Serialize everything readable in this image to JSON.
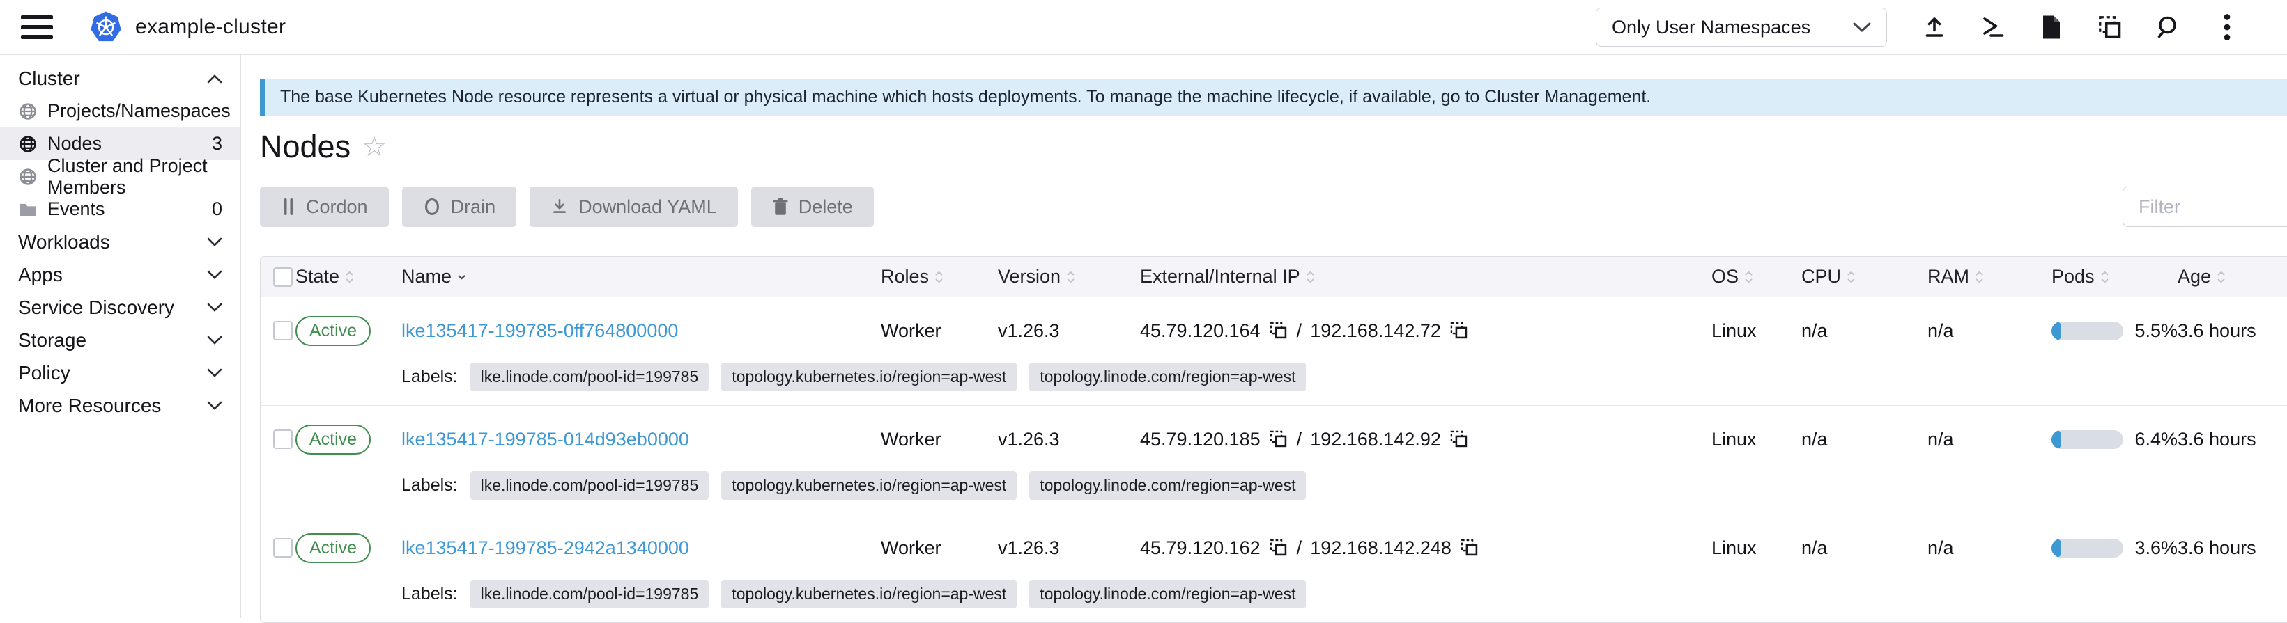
{
  "header": {
    "cluster_name": "example-cluster",
    "namespace_filter_value": "Only User Namespaces",
    "icons": [
      "hamburger-menu-icon",
      "kubernetes-logo",
      "import-yaml-icon",
      "kubectl-shell-icon",
      "docs-icon",
      "copy-config-icon",
      "search-icon",
      "kebab-menu-icon"
    ]
  },
  "sidebar": {
    "cluster_group": {
      "label": "Cluster",
      "items": [
        {
          "label": "Projects/Namespaces",
          "icon": "globe-icon",
          "count": ""
        },
        {
          "label": "Nodes",
          "icon": "globe-icon",
          "count": "3"
        },
        {
          "label": "Cluster and Project Members",
          "icon": "globe-icon",
          "count": ""
        },
        {
          "label": "Events",
          "icon": "folder-icon",
          "count": "0"
        }
      ]
    },
    "groups": [
      {
        "label": "Workloads"
      },
      {
        "label": "Apps"
      },
      {
        "label": "Service Discovery"
      },
      {
        "label": "Storage"
      },
      {
        "label": "Policy"
      },
      {
        "label": "More Resources"
      }
    ]
  },
  "banner": {
    "text": "The base Kubernetes Node resource represents a virtual or physical machine which hosts deployments. To manage the machine lifecycle, if available, go to Cluster Management."
  },
  "page": {
    "title": "Nodes"
  },
  "toolbar": {
    "cordon_label": "Cordon",
    "drain_label": "Drain",
    "download_yaml_label": "Download YAML",
    "delete_label": "Delete",
    "filter_placeholder": "Filter"
  },
  "table": {
    "columns": [
      "State",
      "Name",
      "Roles",
      "Version",
      "External/Internal IP",
      "OS",
      "CPU",
      "RAM",
      "Pods",
      "Age"
    ],
    "labels_prefix": "Labels:",
    "ip_separator": "/",
    "rows": [
      {
        "state": "Active",
        "name": "lke135417-199785-0ff764800000",
        "roles": "Worker",
        "version": "v1.26.3",
        "external_ip": "45.79.120.164",
        "internal_ip": "192.168.142.72",
        "os": "Linux",
        "cpu": "n/a",
        "ram": "n/a",
        "pods_percent": "5.5%",
        "pods_value": 5.5,
        "age": "3.6 hours",
        "labels": [
          "lke.linode.com/pool-id=199785",
          "topology.kubernetes.io/region=ap-west",
          "topology.linode.com/region=ap-west"
        ]
      },
      {
        "state": "Active",
        "name": "lke135417-199785-014d93eb0000",
        "roles": "Worker",
        "version": "v1.26.3",
        "external_ip": "45.79.120.185",
        "internal_ip": "192.168.142.92",
        "os": "Linux",
        "cpu": "n/a",
        "ram": "n/a",
        "pods_percent": "6.4%",
        "pods_value": 6.4,
        "age": "3.6 hours",
        "labels": [
          "lke.linode.com/pool-id=199785",
          "topology.kubernetes.io/region=ap-west",
          "topology.linode.com/region=ap-west"
        ]
      },
      {
        "state": "Active",
        "name": "lke135417-199785-2942a1340000",
        "roles": "Worker",
        "version": "v1.26.3",
        "external_ip": "45.79.120.162",
        "internal_ip": "192.168.142.248",
        "os": "Linux",
        "cpu": "n/a",
        "ram": "n/a",
        "pods_percent": "3.6%",
        "pods_value": 3.6,
        "age": "3.6 hours",
        "labels": [
          "lke.linode.com/pool-id=199785",
          "topology.kubernetes.io/region=ap-west",
          "topology.linode.com/region=ap-west"
        ]
      }
    ]
  },
  "colors": {
    "link_blue": "#3d98d3",
    "success_green": "#418e4f",
    "banner_bg": "#daedf8",
    "banner_accent": "#3d98d3",
    "kubernetes_blue": "#326ce5",
    "bar_fill": "#3d98d3"
  }
}
